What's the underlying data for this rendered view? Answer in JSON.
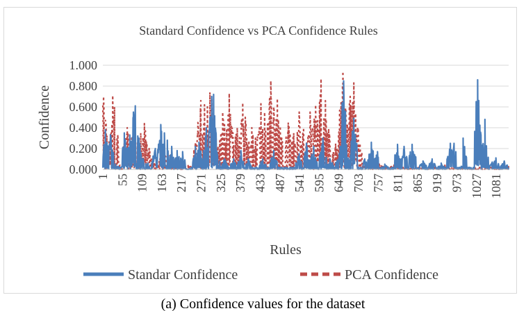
{
  "caption": "(a) Confidence values for the dataset",
  "chart_data": {
    "type": "line",
    "title": "Standard Confidence vs PCA Confidence Rules",
    "xlabel": "Rules",
    "ylabel": "Confidence",
    "ylim": [
      0,
      1.0
    ],
    "y_ticks": [
      "0.000",
      "0.200",
      "0.400",
      "0.600",
      "0.800",
      "1.000"
    ],
    "x_range": [
      1,
      1115
    ],
    "x_tick_labels": [
      "1",
      "55",
      "109",
      "163",
      "217",
      "271",
      "325",
      "379",
      "433",
      "487",
      "541",
      "595",
      "649",
      "703",
      "757",
      "811",
      "865",
      "919",
      "973",
      "1027",
      "1081"
    ],
    "legend_position": "bottom",
    "series": [
      {
        "name": "Standar Confidence",
        "color": "#4a7ebb",
        "style": "solid",
        "peaks": [
          {
            "x": 8,
            "y": 0.38
          },
          {
            "x": 22,
            "y": 0.33
          },
          {
            "x": 36,
            "y": 0.05
          },
          {
            "x": 60,
            "y": 0.35
          },
          {
            "x": 75,
            "y": 0.33
          },
          {
            "x": 85,
            "y": 0.55
          },
          {
            "x": 90,
            "y": 0.61
          },
          {
            "x": 100,
            "y": 0.3
          },
          {
            "x": 112,
            "y": 0.1
          },
          {
            "x": 125,
            "y": 0.06
          },
          {
            "x": 145,
            "y": 0.2
          },
          {
            "x": 160,
            "y": 0.43
          },
          {
            "x": 170,
            "y": 0.35
          },
          {
            "x": 178,
            "y": 0.28
          },
          {
            "x": 190,
            "y": 0.22
          },
          {
            "x": 205,
            "y": 0.18
          },
          {
            "x": 220,
            "y": 0.17
          },
          {
            "x": 255,
            "y": 0.22
          },
          {
            "x": 265,
            "y": 0.26
          },
          {
            "x": 285,
            "y": 0.4
          },
          {
            "x": 300,
            "y": 0.7
          },
          {
            "x": 305,
            "y": 0.72
          },
          {
            "x": 315,
            "y": 0.15
          },
          {
            "x": 335,
            "y": 0.1
          },
          {
            "x": 360,
            "y": 0.1
          },
          {
            "x": 380,
            "y": 0.18
          },
          {
            "x": 400,
            "y": 0.1
          },
          {
            "x": 440,
            "y": 0.1
          },
          {
            "x": 470,
            "y": 0.18
          },
          {
            "x": 540,
            "y": 0.15
          },
          {
            "x": 560,
            "y": 0.25
          },
          {
            "x": 580,
            "y": 0.22
          },
          {
            "x": 605,
            "y": 0.3
          },
          {
            "x": 625,
            "y": 0.1
          },
          {
            "x": 650,
            "y": 0.15
          },
          {
            "x": 662,
            "y": 0.85
          },
          {
            "x": 670,
            "y": 0.2
          },
          {
            "x": 690,
            "y": 0.49
          },
          {
            "x": 720,
            "y": 0.1
          },
          {
            "x": 738,
            "y": 0.26
          },
          {
            "x": 755,
            "y": 0.17
          },
          {
            "x": 775,
            "y": 0.05
          },
          {
            "x": 810,
            "y": 0.24
          },
          {
            "x": 828,
            "y": 0.22
          },
          {
            "x": 850,
            "y": 0.24
          },
          {
            "x": 860,
            "y": 0.12
          },
          {
            "x": 880,
            "y": 0.08
          },
          {
            "x": 905,
            "y": 0.1
          },
          {
            "x": 930,
            "y": 0.06
          },
          {
            "x": 955,
            "y": 0.25
          },
          {
            "x": 965,
            "y": 0.25
          },
          {
            "x": 990,
            "y": 0.3
          },
          {
            "x": 1030,
            "y": 0.86
          },
          {
            "x": 1050,
            "y": 0.48
          },
          {
            "x": 1070,
            "y": 0.07
          },
          {
            "x": 1080,
            "y": 0.11
          },
          {
            "x": 1103,
            "y": 0.08
          }
        ]
      },
      {
        "name": "PCA Confidence",
        "color": "#be4b48",
        "style": "dashed",
        "peaks": [
          {
            "x": 3,
            "y": 0.7
          },
          {
            "x": 10,
            "y": 0.45
          },
          {
            "x": 28,
            "y": 0.71
          },
          {
            "x": 33,
            "y": 0.6
          },
          {
            "x": 44,
            "y": 0.05
          },
          {
            "x": 68,
            "y": 0.4
          },
          {
            "x": 80,
            "y": 0.3
          },
          {
            "x": 88,
            "y": 0.5
          },
          {
            "x": 105,
            "y": 0.35
          },
          {
            "x": 115,
            "y": 0.44
          },
          {
            "x": 128,
            "y": 0.2
          },
          {
            "x": 150,
            "y": 0.1
          },
          {
            "x": 168,
            "y": 0.2
          },
          {
            "x": 185,
            "y": 0.15
          },
          {
            "x": 200,
            "y": 0.1
          },
          {
            "x": 235,
            "y": 0.05
          },
          {
            "x": 262,
            "y": 0.45
          },
          {
            "x": 270,
            "y": 0.66
          },
          {
            "x": 280,
            "y": 0.62
          },
          {
            "x": 288,
            "y": 0.6
          },
          {
            "x": 295,
            "y": 0.74
          },
          {
            "x": 300,
            "y": 0.67
          },
          {
            "x": 312,
            "y": 0.3
          },
          {
            "x": 330,
            "y": 0.55
          },
          {
            "x": 348,
            "y": 0.73
          },
          {
            "x": 358,
            "y": 0.35
          },
          {
            "x": 370,
            "y": 0.4
          },
          {
            "x": 385,
            "y": 0.64
          },
          {
            "x": 392,
            "y": 0.5
          },
          {
            "x": 410,
            "y": 0.4
          },
          {
            "x": 420,
            "y": 0.3
          },
          {
            "x": 435,
            "y": 0.63
          },
          {
            "x": 445,
            "y": 0.55
          },
          {
            "x": 455,
            "y": 0.4
          },
          {
            "x": 462,
            "y": 0.85
          },
          {
            "x": 470,
            "y": 0.6
          },
          {
            "x": 480,
            "y": 0.68
          },
          {
            "x": 492,
            "y": 0.3
          },
          {
            "x": 510,
            "y": 0.45
          },
          {
            "x": 525,
            "y": 0.35
          },
          {
            "x": 540,
            "y": 0.55
          },
          {
            "x": 552,
            "y": 0.4
          },
          {
            "x": 570,
            "y": 0.55
          },
          {
            "x": 585,
            "y": 0.62
          },
          {
            "x": 600,
            "y": 0.87
          },
          {
            "x": 612,
            "y": 0.66
          },
          {
            "x": 625,
            "y": 0.2
          },
          {
            "x": 640,
            "y": 0.25
          },
          {
            "x": 660,
            "y": 0.94
          },
          {
            "x": 670,
            "y": 0.3
          },
          {
            "x": 680,
            "y": 0.7
          },
          {
            "x": 690,
            "y": 0.83
          },
          {
            "x": 700,
            "y": 0.4
          },
          {
            "x": 722,
            "y": 0.06
          },
          {
            "x": 760,
            "y": 0.05
          },
          {
            "x": 800,
            "y": 0.04
          },
          {
            "x": 880,
            "y": 0.03
          },
          {
            "x": 940,
            "y": 0.04
          },
          {
            "x": 1000,
            "y": 0.03
          },
          {
            "x": 1060,
            "y": 0.04
          },
          {
            "x": 1110,
            "y": 0.04
          }
        ]
      }
    ]
  }
}
